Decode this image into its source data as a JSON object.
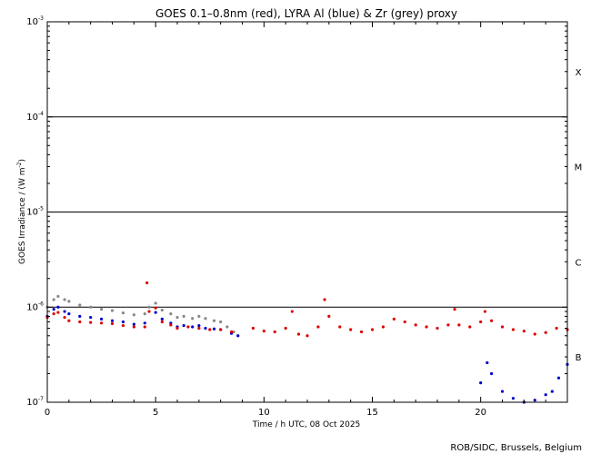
{
  "chart_data": {
    "type": "scatter",
    "title": "GOES 0.1–0.8nm (red), LYRA Al (blue) & Zr (grey) proxy",
    "xlabel": "Time / h UTC, 08 Oct 2025",
    "ylabel": "GOES Irradiance / (W m",
    "ylabel_sup": "-2",
    "ylabel_tail": ")",
    "ylog": true,
    "xlim": [
      0,
      24
    ],
    "ylim": [
      1e-07,
      0.001
    ],
    "x_ticks": [
      {
        "value": 0,
        "label": "0"
      },
      {
        "value": 5,
        "label": "5"
      },
      {
        "value": 10,
        "label": "10"
      },
      {
        "value": 15,
        "label": "15"
      },
      {
        "value": 20,
        "label": "20"
      }
    ],
    "y_ticks": [
      {
        "value": 0.001,
        "base": "10",
        "exp": "-3"
      },
      {
        "value": 0.0001,
        "base": "10",
        "exp": "-4"
      },
      {
        "value": 1e-05,
        "base": "10",
        "exp": "-5"
      },
      {
        "value": 1e-06,
        "base": "10",
        "exp": "-6"
      },
      {
        "value": 1e-07,
        "base": "10",
        "exp": "-7"
      }
    ],
    "reference_lines": [
      0.0001,
      1e-05,
      1e-06
    ],
    "class_labels": [
      {
        "label": "X",
        "value": 0.0003
      },
      {
        "label": "M",
        "value": 3e-05
      },
      {
        "label": "C",
        "value": 3e-06
      },
      {
        "label": "B",
        "value": 3e-07
      }
    ],
    "series": [
      {
        "name": "Zr (grey)",
        "color": "#888888",
        "x": [
          0,
          0.3,
          0.5,
          0.8,
          1.0,
          1.5,
          2.0,
          2.5,
          3.0,
          3.5,
          4.0,
          4.5,
          4.7,
          5.0,
          5.3,
          5.7,
          6.0,
          6.3,
          6.7,
          7.0,
          7.3,
          7.7,
          8.0,
          8.3,
          8.6
        ],
        "values": [
          1e-06,
          1.2e-06,
          1.3e-06,
          1.2e-06,
          1.15e-06,
          1.05e-06,
          1e-06,
          9.5e-07,
          9.2e-07,
          8.7e-07,
          8.3e-07,
          8.5e-07,
          1e-06,
          1.1e-06,
          9.3e-07,
          8.5e-07,
          7.8e-07,
          8e-07,
          7.6e-07,
          8e-07,
          7.6e-07,
          7.2e-07,
          7e-07,
          6.2e-07,
          5.5e-07
        ]
      },
      {
        "name": "LYRA Al (blue)",
        "color": "#0000cc",
        "x": [
          0,
          0.3,
          0.5,
          0.8,
          1.0,
          1.5,
          2.0,
          2.5,
          3.0,
          3.5,
          4.0,
          4.5,
          5.0,
          5.3,
          5.7,
          6.0,
          6.3,
          6.7,
          7.0,
          7.3,
          7.7,
          8.0,
          8.5,
          8.8,
          20.0,
          20.3,
          20.5,
          21.0,
          21.5,
          22.0,
          22.5,
          23.0,
          23.3,
          23.6,
          24.0
        ],
        "values": [
          8e-07,
          9.5e-07,
          1e-06,
          9e-07,
          8.5e-07,
          8e-07,
          7.8e-07,
          7.5e-07,
          7.2e-07,
          7e-07,
          6.6e-07,
          6.8e-07,
          8.8e-07,
          7.5e-07,
          6.8e-07,
          6.2e-07,
          6.4e-07,
          6.2e-07,
          6.4e-07,
          6e-07,
          5.9e-07,
          5.8e-07,
          5.3e-07,
          5e-07,
          1.6e-07,
          2.6e-07,
          2e-07,
          1.3e-07,
          1.1e-07,
          1e-07,
          1.05e-07,
          1.2e-07,
          1.3e-07,
          1.8e-07,
          2.5e-07
        ]
      },
      {
        "name": "GOES 0.1–0.8nm (red)",
        "color": "#dd0000",
        "x": [
          0,
          0.3,
          0.5,
          0.8,
          1.0,
          1.5,
          2.0,
          2.5,
          3.0,
          3.5,
          4.0,
          4.5,
          4.6,
          4.7,
          5.0,
          5.3,
          5.7,
          6.0,
          6.5,
          7.0,
          7.5,
          8.0,
          8.5,
          9.5,
          10.0,
          10.5,
          11.0,
          11.3,
          11.6,
          12.0,
          12.5,
          12.8,
          13.0,
          13.5,
          14.0,
          14.5,
          15.0,
          15.5,
          16.0,
          16.5,
          17.0,
          17.5,
          18.0,
          18.5,
          18.8,
          19.0,
          19.5,
          20.0,
          20.2,
          20.5,
          21.0,
          21.5,
          22.0,
          22.5,
          23.0,
          23.5,
          24.0
        ],
        "values": [
          7.8e-07,
          8.5e-07,
          8.8e-07,
          7.8e-07,
          7.2e-07,
          7e-07,
          6.9e-07,
          6.8e-07,
          6.7e-07,
          6.4e-07,
          6.2e-07,
          6.2e-07,
          1.8e-06,
          9e-07,
          9.8e-07,
          7e-07,
          6.5e-07,
          6e-07,
          6.2e-07,
          6e-07,
          5.8e-07,
          5.8e-07,
          5.5e-07,
          6e-07,
          5.6e-07,
          5.5e-07,
          6e-07,
          9e-07,
          5.2e-07,
          5e-07,
          6.2e-07,
          1.2e-06,
          8e-07,
          6.2e-07,
          5.8e-07,
          5.5e-07,
          5.8e-07,
          6.2e-07,
          7.5e-07,
          7e-07,
          6.5e-07,
          6.2e-07,
          6e-07,
          6.5e-07,
          9.5e-07,
          6.5e-07,
          6.2e-07,
          7e-07,
          9e-07,
          7.2e-07,
          6.2e-07,
          5.8e-07,
          5.6e-07,
          5.2e-07,
          5.4e-07,
          6e-07,
          5.8e-07
        ]
      }
    ]
  },
  "credit": "ROB/SIDC, Brussels, Belgium"
}
